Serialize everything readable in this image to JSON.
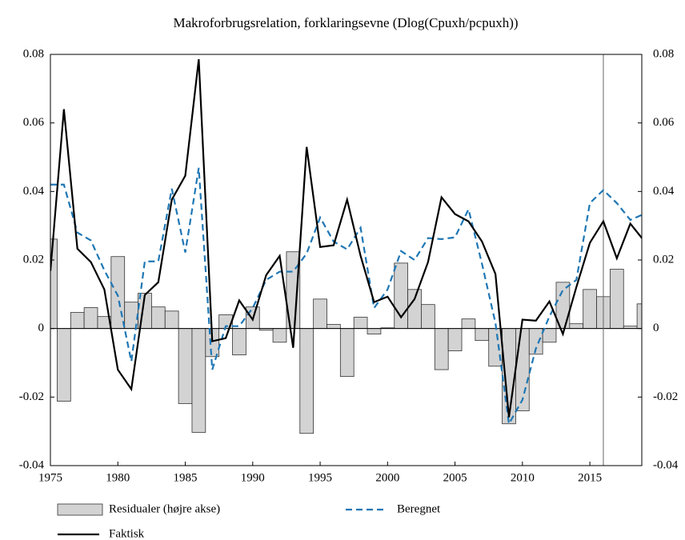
{
  "chart_data": {
    "type": "combo",
    "title": "Makroforbrugsrelation, forklaringsevne (Dlog(Cpuxh/pcpuxh))",
    "x": [
      1975,
      1976,
      1977,
      1978,
      1979,
      1980,
      1981,
      1982,
      1983,
      1984,
      1985,
      1986,
      1987,
      1988,
      1989,
      1990,
      1991,
      1992,
      1993,
      1994,
      1995,
      1996,
      1997,
      1998,
      1999,
      2000,
      2001,
      2002,
      2003,
      2004,
      2005,
      2006,
      2007,
      2008,
      2009,
      2010,
      2011,
      2012,
      2013,
      2014,
      2015,
      2016,
      2017,
      2018,
      2019
    ],
    "series": [
      {
        "name": "Residualer (højre akse)",
        "type": "bar",
        "axis": "y2",
        "color": "#d3d3d3",
        "values": [
          0.0261,
          -0.0212,
          0.0047,
          0.0061,
          0.0035,
          0.021,
          0.0077,
          0.0103,
          0.0063,
          0.0051,
          -0.0219,
          -0.0303,
          -0.0082,
          0.004,
          -0.0077,
          0.0063,
          -0.0005,
          -0.004,
          0.0224,
          -0.0306,
          0.0086,
          0.0012,
          -0.014,
          0.0033,
          -0.0016,
          0.0002,
          0.0191,
          0.0114,
          0.007,
          -0.012,
          -0.0065,
          0.0028,
          -0.0035,
          -0.011,
          -0.0278,
          -0.024,
          -0.0075,
          -0.004,
          0.0135,
          0.0014,
          0.0114,
          0.0093,
          0.0173,
          0.0007,
          0.0072
        ]
      },
      {
        "name": "Beregnet",
        "type": "line",
        "dashed": true,
        "color": "#1f77b4",
        "values": [
          0.042,
          0.042,
          0.028,
          0.0257,
          0.017,
          0.0096,
          -0.0096,
          0.0196,
          0.0196,
          0.0408,
          0.0222,
          0.0469,
          -0.012,
          0.0007,
          0.0007,
          0.006,
          0.0142,
          0.0166,
          0.0166,
          0.0219,
          0.0324,
          0.0254,
          0.0231,
          0.0294,
          0.006,
          0.0114,
          0.0226,
          0.02,
          0.0264,
          0.0261,
          0.0266,
          0.0348,
          0.0189,
          0.0016,
          -0.0278,
          -0.0208,
          -0.0058,
          0.0035,
          0.0112,
          0.0142,
          0.0366,
          0.0404,
          0.0366,
          0.0317,
          0.0334
        ]
      },
      {
        "name": "Faktisk",
        "type": "line",
        "dashed": false,
        "color": "#000000",
        "values": [
          0.0168,
          0.064,
          0.0233,
          0.0194,
          0.0114,
          -0.012,
          -0.0177,
          0.0098,
          0.0135,
          0.0376,
          0.0446,
          0.0786,
          -0.0037,
          -0.0028,
          0.0082,
          0.0026,
          0.0156,
          0.0212,
          -0.0056,
          0.053,
          0.0238,
          0.0243,
          0.0376,
          0.0212,
          0.0077,
          0.0093,
          0.0033,
          0.0086,
          0.0194,
          0.0383,
          0.0334,
          0.0313,
          0.0254,
          0.0159,
          -0.0259,
          0.0026,
          0.0023,
          0.0079,
          -0.0016,
          0.0121,
          0.025,
          0.0313,
          0.0205,
          0.0306,
          0.0257
        ]
      }
    ],
    "xlim": [
      1975,
      2018.85
    ],
    "xticks": [
      1975,
      1980,
      1985,
      1990,
      1995,
      2000,
      2005,
      2010,
      2015
    ],
    "ylim": [
      -0.04,
      0.08
    ],
    "yticks": [
      -0.04,
      -0.02,
      0,
      0.02,
      0.04,
      0.06,
      0.08
    ],
    "y2lim": [
      -0.04,
      0.08
    ],
    "y2ticks": [
      -0.04,
      -0.02,
      0,
      0.02,
      0.04,
      0.06,
      0.08
    ],
    "vline": 2016
  }
}
